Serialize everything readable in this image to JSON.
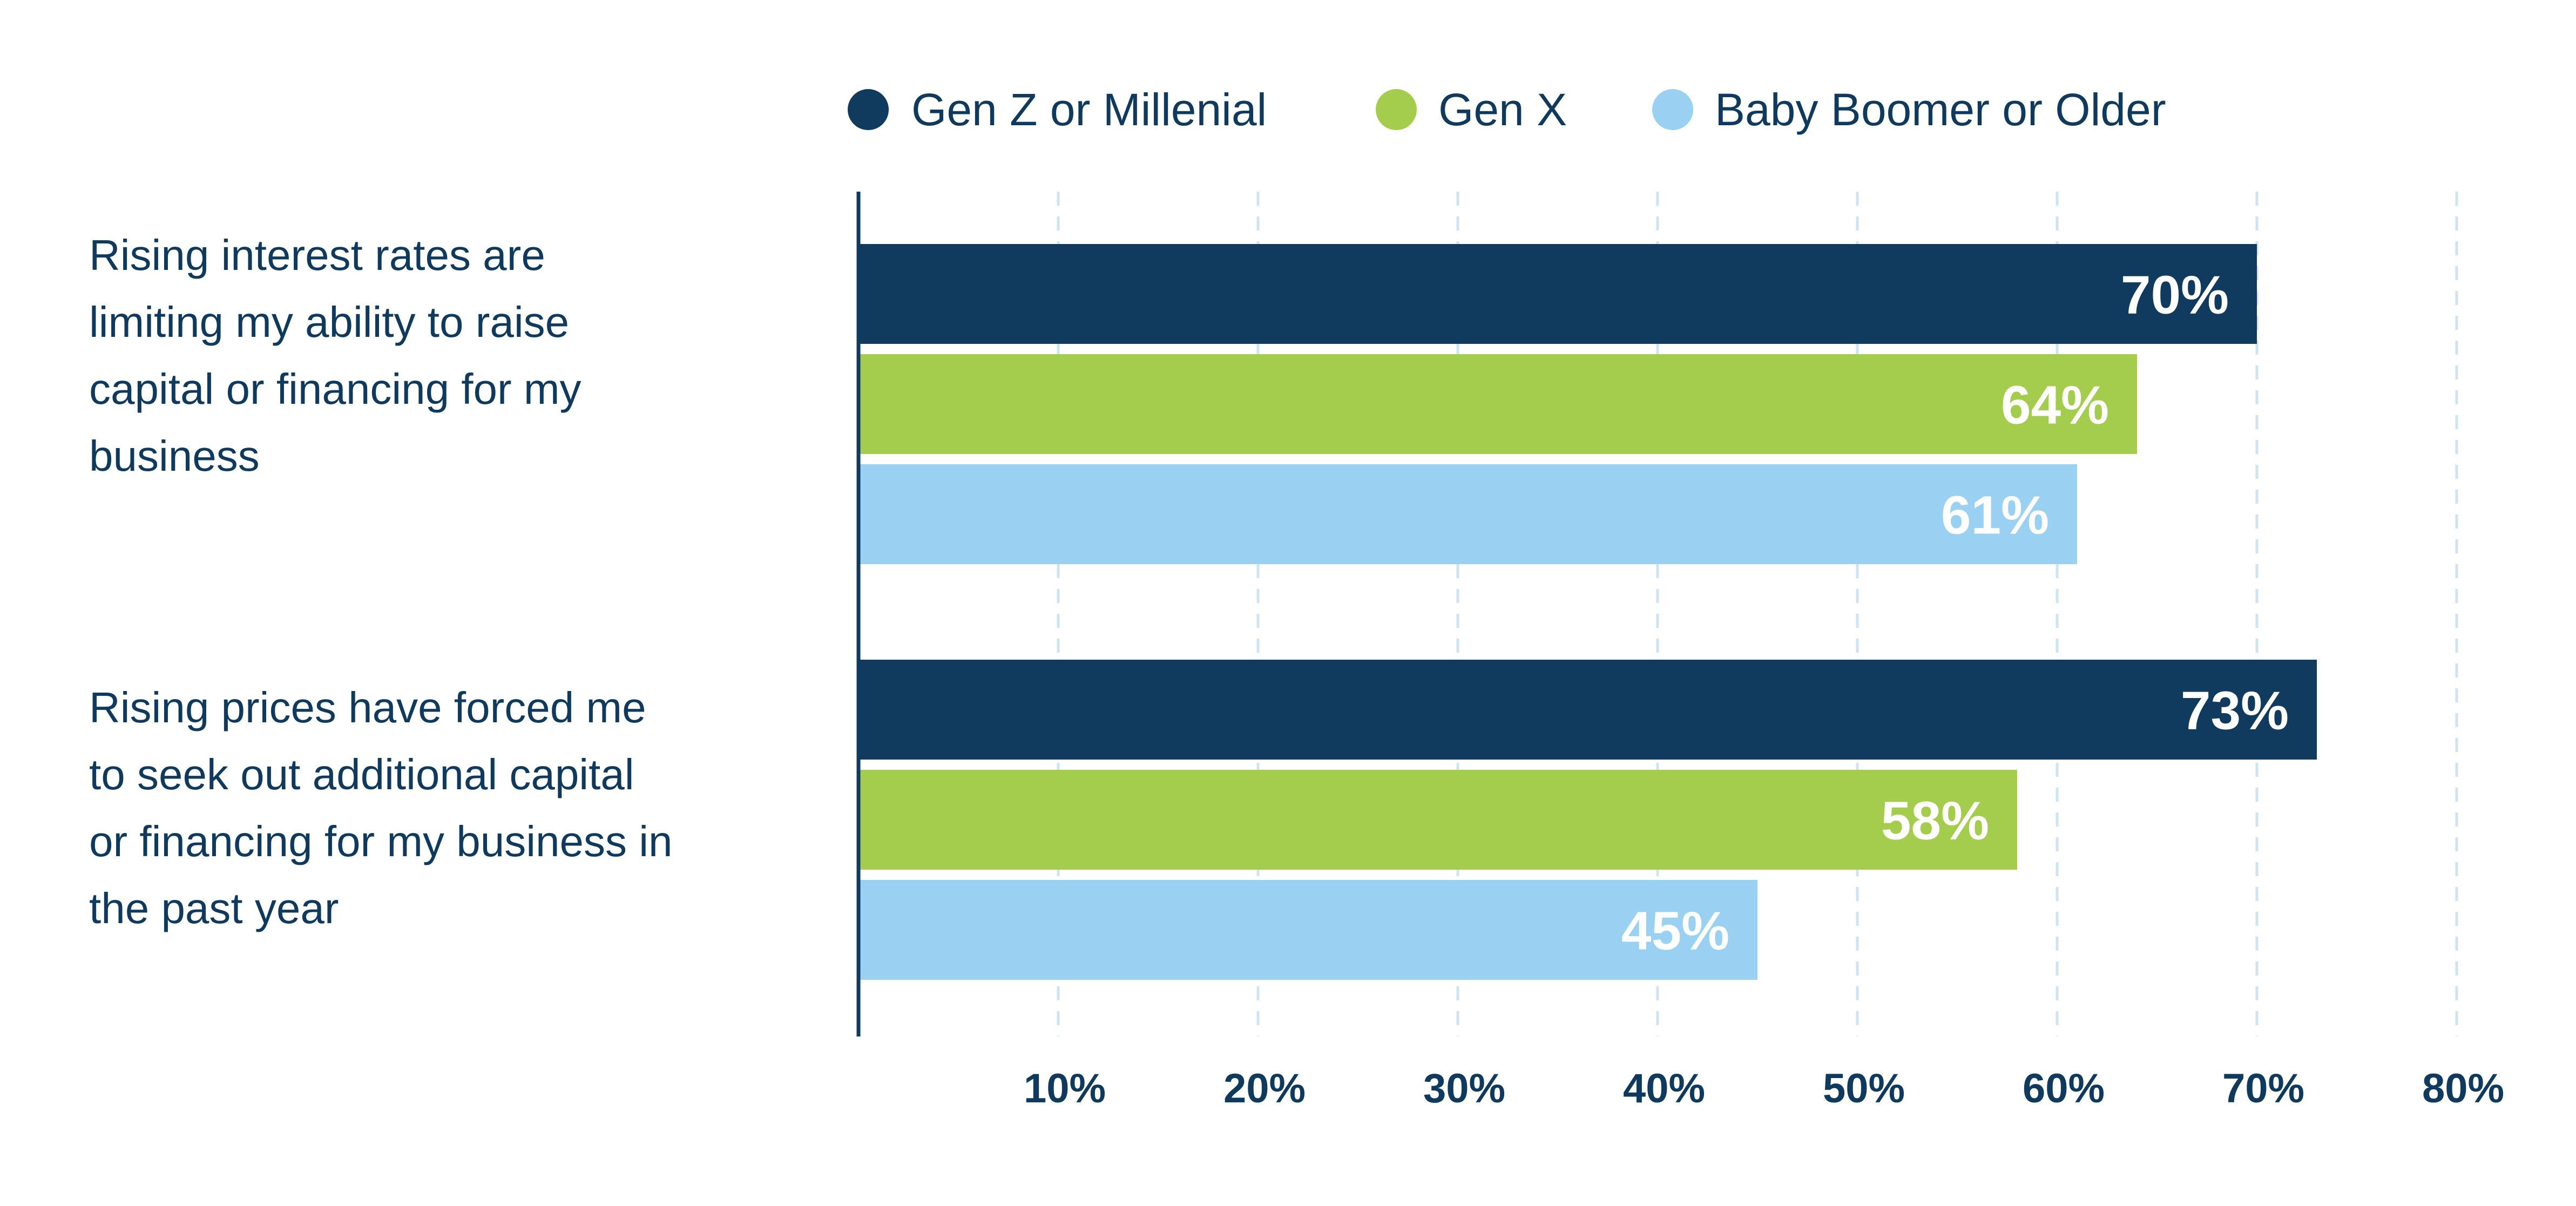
{
  "chart_data": {
    "type": "bar",
    "orientation": "horizontal",
    "categories": [
      "Rising interest rates are limiting my ability to raise capital or financing for my business",
      "Rising prices have forced me to seek out additional capital or financing for my business in the past year"
    ],
    "category_lines": [
      [
        "Rising interest rates are",
        "limiting my ability to raise",
        "capital or financing for my",
        "business"
      ],
      [
        "Rising prices have forced me",
        "to seek out additional capital",
        "or financing for my business in",
        "the past year"
      ]
    ],
    "series": [
      {
        "name": "Gen Z or Millenial",
        "color": "#103b5e",
        "values": [
          70,
          73
        ],
        "labels": [
          "70%",
          "73%"
        ]
      },
      {
        "name": "Gen X",
        "color": "#a4cd4e",
        "values": [
          64,
          58
        ],
        "labels": [
          "64%",
          "58%"
        ]
      },
      {
        "name": "Baby Boomer or Older",
        "color": "#9ad0f2",
        "values": [
          61,
          45
        ],
        "labels": [
          "61%",
          "45%"
        ]
      }
    ],
    "xticks": [
      10,
      20,
      30,
      40,
      50,
      60,
      70,
      80
    ],
    "xtick_labels": [
      "10%",
      "20%",
      "30%",
      "40%",
      "50%",
      "60%",
      "70%",
      "80%"
    ],
    "xlim": [
      0,
      80
    ],
    "grid": true,
    "legend_position": "top",
    "title": "",
    "xlabel": "",
    "ylabel": ""
  }
}
